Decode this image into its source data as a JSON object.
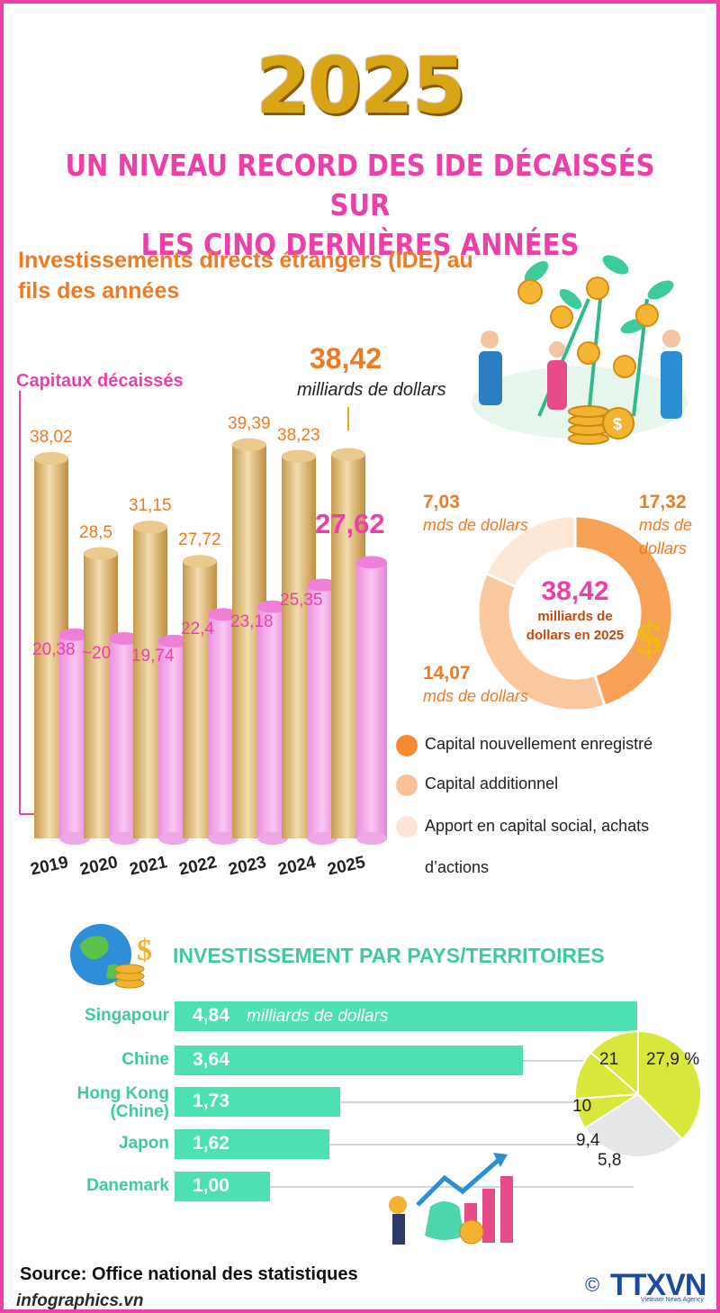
{
  "header": {
    "year": "2025",
    "headline_line1": "UN NIVEAU RECORD DES IDE DÉCAISSÉS SUR",
    "headline_line2": "LES CINQ DERNIÈRES ANNÉES",
    "subtitle_line1": "Investissements directs étrangers (IDE) au",
    "subtitle_line2": "fils des années"
  },
  "chart_data": [
    {
      "type": "bar",
      "title": "Investissements directs étrangers (IDE) au fils des années",
      "categories": [
        "2019",
        "2020",
        "2021",
        "2022",
        "2023",
        "2024",
        "2025"
      ],
      "series": [
        {
          "name": "",
          "values": [
            38.02,
            28.5,
            31.15,
            27.72,
            39.39,
            38.23,
            38.42
          ],
          "labels": [
            "38,02",
            "28,5",
            "31,15",
            "27,72",
            "39,39",
            "38,23",
            ""
          ]
        },
        {
          "name": "Capitaux décaissés",
          "values": [
            20.38,
            20,
            19.74,
            22.4,
            23.18,
            25.35,
            27.62
          ],
          "labels": [
            "20,38",
            "~20",
            "19,74",
            "22,4",
            "23,18",
            "25,35",
            "27,62"
          ]
        }
      ],
      "callout_value": "38,42",
      "callout_unit": "milliards de dollars",
      "ylim": [
        0,
        40
      ]
    },
    {
      "type": "pie",
      "labels": [
        "Capital nouvellement enregistré",
        "Capital additionnel",
        "Apport en capital social, achats d’actions"
      ],
      "values": [
        17.32,
        14.07,
        7.03
      ],
      "value_labels": [
        "17,32",
        "14,07",
        "7,03"
      ],
      "unit": "mds de dollars",
      "colors": [
        "#f7a157",
        "#fbc79d",
        "#fde7d6"
      ],
      "center_value": "38,42",
      "center_text": "milliards de dollars en 2025"
    },
    {
      "type": "bar",
      "title": "INVESTISSEMENT PAR PAYS/TERRITOIRES",
      "categories": [
        "Singapour",
        "Chine",
        "Hong Kong (Chine)",
        "Japon",
        "Danemark"
      ],
      "values": [
        4.84,
        3.64,
        1.73,
        1.62,
        1.0
      ],
      "value_labels": [
        "4,84",
        "3,64",
        "1,73",
        "1,62",
        "1,00"
      ],
      "unit": "milliards de dollars"
    },
    {
      "type": "pie",
      "values": [
        27.9,
        21,
        10,
        9.4,
        5.8
      ],
      "value_labels": [
        "27,9 %",
        "21",
        "10",
        "9,4",
        "5,8"
      ],
      "colors": [
        "#d9e63a",
        "#e6e6e6",
        "#d9e63a",
        "#d9e63a",
        "#d9e63a"
      ]
    }
  ],
  "labels": {
    "cap_label": "Capitaux décaissés",
    "total_num": "38,42",
    "total_unit": "milliards de dollars",
    "donut_center_num": "38,42",
    "donut_center_line1": "milliards de",
    "donut_center_line2": "dollars en 2025",
    "seg1_num": "7,03",
    "seg1_unit": "mds de dollars",
    "seg2_num": "17,32",
    "seg2_unit_line1": "mds de",
    "seg2_unit_line2": "dollars",
    "seg3_num": "14,07",
    "seg3_unit": "mds de dollars",
    "legend1": "Capital nouvellement enregistré",
    "legend2": "Capital additionnel",
    "legend3_line1": "Apport en capital social, achats",
    "legend3_line2": "d’actions",
    "section_title": "INVESTISSEMENT PAR PAYS/TERRITOIRES",
    "country_unit": "milliards de dollars",
    "hk_line1": "Hong Kong",
    "hk_line2": "(Chine)"
  },
  "footer": {
    "source": "Source: Office national des statistiques",
    "credit": "infographics.vn",
    "logo": "TTXVN",
    "logo_sub": "Vietnam News Agency",
    "copyright_symbol": "©"
  },
  "colors": {
    "pink": "#ee3fa9",
    "orange": "#f07a22",
    "gold": "#d8a514",
    "teal": "#3ec9a1",
    "lime": "#d9e63a"
  }
}
